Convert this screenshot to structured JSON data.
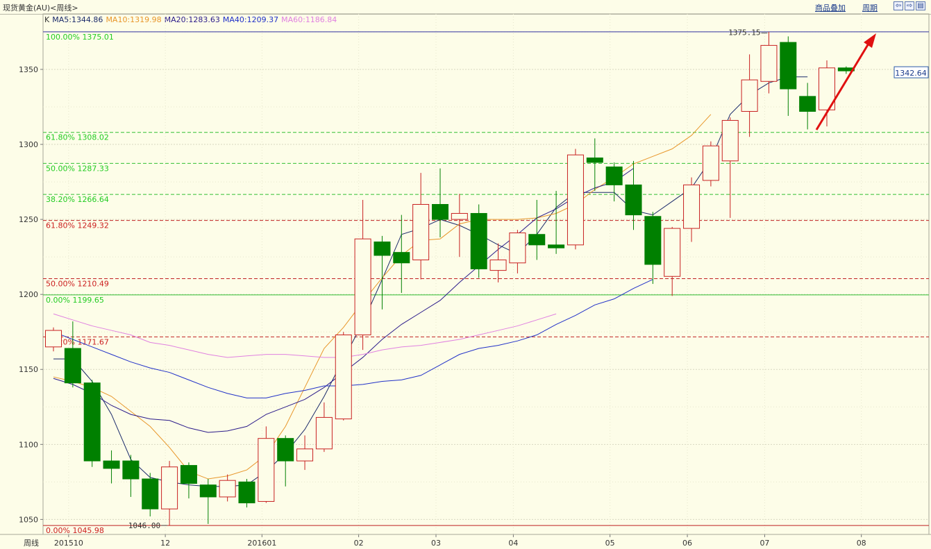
{
  "header": {
    "title": "现货黄金(AU)<周线>",
    "overlay_label": "商品叠加",
    "period_label": "周期"
  },
  "legend": {
    "prefix": "K",
    "items": [
      {
        "label": "MA5:1344.86",
        "color": "#1a2a6a"
      },
      {
        "label": "MA10:1319.98",
        "color": "#e8962a"
      },
      {
        "label": "MA20:1283.63",
        "color": "#2a1a8a"
      },
      {
        "label": "MA40:1209.37",
        "color": "#2030c8"
      },
      {
        "label": "MA60:1186.84",
        "color": "#e080e0"
      }
    ]
  },
  "chart_data": {
    "type": "candlestick",
    "ylim": [
      1040,
      1387
    ],
    "yticks": [
      1050,
      1100,
      1150,
      1200,
      1250,
      1300,
      1350
    ],
    "x_corner_label": "周线",
    "x_ticks": [
      {
        "label": "201510",
        "index": 1
      },
      {
        "label": "12",
        "index": 6
      },
      {
        "label": "201601",
        "index": 11
      },
      {
        "label": "02",
        "index": 16
      },
      {
        "label": "03",
        "index": 20
      },
      {
        "label": "04",
        "index": 24
      },
      {
        "label": "05",
        "index": 29
      },
      {
        "label": "06",
        "index": 33
      },
      {
        "label": "07",
        "index": 37
      },
      {
        "label": "08",
        "index": 42
      }
    ],
    "candles": [
      {
        "o": 1165,
        "h": 1178,
        "l": 1162,
        "c": 1176
      },
      {
        "o": 1164,
        "h": 1182,
        "l": 1138,
        "c": 1141
      },
      {
        "o": 1141,
        "h": 1143,
        "l": 1085,
        "c": 1089
      },
      {
        "o": 1089,
        "h": 1096,
        "l": 1074,
        "c": 1084
      },
      {
        "o": 1089,
        "h": 1093,
        "l": 1065,
        "c": 1077
      },
      {
        "o": 1077,
        "h": 1081,
        "l": 1052,
        "c": 1057
      },
      {
        "o": 1057,
        "h": 1089,
        "l": 1046,
        "c": 1085
      },
      {
        "o": 1086,
        "h": 1088,
        "l": 1064,
        "c": 1074
      },
      {
        "o": 1073,
        "h": 1077,
        "l": 1047,
        "c": 1065
      },
      {
        "o": 1065,
        "h": 1080,
        "l": 1062,
        "c": 1076
      },
      {
        "o": 1075,
        "h": 1077,
        "l": 1058,
        "c": 1061
      },
      {
        "o": 1062,
        "h": 1112,
        "l": 1061,
        "c": 1104
      },
      {
        "o": 1104,
        "h": 1106,
        "l": 1072,
        "c": 1089
      },
      {
        "o": 1089,
        "h": 1106,
        "l": 1083,
        "c": 1097
      },
      {
        "o": 1097,
        "h": 1128,
        "l": 1095,
        "c": 1118
      },
      {
        "o": 1117,
        "h": 1175,
        "l": 1116,
        "c": 1173
      },
      {
        "o": 1173,
        "h": 1263,
        "l": 1163,
        "c": 1237
      },
      {
        "o": 1235,
        "h": 1239,
        "l": 1190,
        "c": 1226
      },
      {
        "o": 1228,
        "h": 1253,
        "l": 1201,
        "c": 1221
      },
      {
        "o": 1223,
        "h": 1281,
        "l": 1210,
        "c": 1260
      },
      {
        "o": 1260,
        "h": 1284,
        "l": 1238,
        "c": 1250
      },
      {
        "o": 1250,
        "h": 1267,
        "l": 1225,
        "c": 1254
      },
      {
        "o": 1254,
        "h": 1260,
        "l": 1211,
        "c": 1217
      },
      {
        "o": 1216,
        "h": 1234,
        "l": 1208,
        "c": 1223
      },
      {
        "o": 1221,
        "h": 1243,
        "l": 1214,
        "c": 1241
      },
      {
        "o": 1240,
        "h": 1263,
        "l": 1223,
        "c": 1233
      },
      {
        "o": 1233,
        "h": 1269,
        "l": 1227,
        "c": 1231
      },
      {
        "o": 1233,
        "h": 1297,
        "l": 1230,
        "c": 1293
      },
      {
        "o": 1291,
        "h": 1304,
        "l": 1269,
        "c": 1288
      },
      {
        "o": 1285,
        "h": 1288,
        "l": 1262,
        "c": 1273
      },
      {
        "o": 1273,
        "h": 1289,
        "l": 1243,
        "c": 1253
      },
      {
        "o": 1252,
        "h": 1255,
        "l": 1207,
        "c": 1220
      },
      {
        "o": 1212,
        "h": 1245,
        "l": 1199,
        "c": 1244
      },
      {
        "o": 1244,
        "h": 1278,
        "l": 1235,
        "c": 1273
      },
      {
        "o": 1276,
        "h": 1302,
        "l": 1272,
        "c": 1299
      },
      {
        "o": 1289,
        "h": 1318,
        "l": 1251,
        "c": 1316
      },
      {
        "o": 1322,
        "h": 1360,
        "l": 1305,
        "c": 1343
      },
      {
        "o": 1342,
        "h": 1375,
        "l": 1334,
        "c": 1366
      },
      {
        "o": 1368,
        "h": 1372,
        "l": 1319,
        "c": 1337
      },
      {
        "o": 1332,
        "h": 1341,
        "l": 1310,
        "c": 1322
      },
      {
        "o": 1323,
        "h": 1356,
        "l": 1312,
        "c": 1351
      },
      {
        "o": 1351,
        "h": 1352,
        "l": 1347,
        "c": 1349
      }
    ],
    "ma_series": [
      {
        "name": "MA5",
        "color": "#1a2a6a",
        "start": 0,
        "values": [
          1157,
          1157,
          1142,
          1120,
          1090,
          1078,
          1075,
          1073,
          1072,
          1072,
          1073,
          1082,
          1094,
          1110,
          1132,
          1157,
          1181,
          1210,
          1240,
          1244,
          1250,
          1246,
          1240,
          1233,
          1227,
          1240,
          1258,
          1268,
          1268,
          1268,
          1256,
          1253,
          1262,
          1271,
          1290,
          1320,
          1333,
          1341,
          1345,
          1345
        ]
      },
      {
        "name": "MA10",
        "color": "#e8962a",
        "start": 0,
        "values": [
          1145,
          1142,
          1138,
          1132,
          1122,
          1112,
          1098,
          1082,
          1077,
          1079,
          1083,
          1093,
          1112,
          1138,
          1164,
          1178,
          1195,
          1211,
          1226,
          1236,
          1237,
          1247,
          1250,
          1250,
          1250,
          1251,
          1254,
          1260,
          1270,
          1278,
          1287,
          1292,
          1297,
          1306,
          1320
        ]
      },
      {
        "name": "MA20",
        "color": "#2a1a8a",
        "start": 0,
        "values": [
          1144,
          1140,
          1134,
          1126,
          1120,
          1117,
          1116,
          1111,
          1108,
          1109,
          1112,
          1120,
          1125,
          1130,
          1138,
          1148,
          1158,
          1170,
          1180,
          1188,
          1196,
          1208,
          1219,
          1230,
          1240,
          1251,
          1257,
          1265,
          1271,
          1275,
          1284
        ]
      },
      {
        "name": "MA40",
        "color": "#2030c8",
        "start": 0,
        "values": [
          1175,
          1170,
          1165,
          1160,
          1155,
          1151,
          1148,
          1143,
          1138,
          1134,
          1131,
          1131,
          1134,
          1136,
          1139,
          1139,
          1140,
          1142,
          1143,
          1146,
          1153,
          1160,
          1164,
          1166,
          1169,
          1173,
          1180,
          1186,
          1193,
          1197,
          1204,
          1210
        ]
      },
      {
        "name": "MA60",
        "color": "#e080e0",
        "start": 0,
        "values": [
          1187,
          1183,
          1179,
          1176,
          1173,
          1168,
          1166,
          1163,
          1160,
          1158,
          1159,
          1160,
          1160,
          1159,
          1158,
          1158,
          1160,
          1163,
          1165,
          1166,
          1168,
          1170,
          1173,
          1176,
          1179,
          1183,
          1187
        ]
      }
    ],
    "fib_green": [
      {
        "label": "100.00% 1375.01",
        "value": 1375.01
      },
      {
        "label": "61.80% 1308.02",
        "value": 1308.02
      },
      {
        "label": "50.00% 1287.33",
        "value": 1287.33
      },
      {
        "label": "38.20% 1266.64",
        "value": 1266.64
      },
      {
        "label": "0.00% 1199.65",
        "value": 1199.65
      }
    ],
    "fib_red": [
      {
        "label": "61.80% 1249.32",
        "value": 1249.32
      },
      {
        "label": "50.00% 1210.49",
        "value": 1210.49
      },
      {
        "label": "38.20% 1171.67",
        "value": 1171.67
      },
      {
        "label": "0.00% 1045.98",
        "value": 1045.98
      }
    ],
    "annotations": {
      "high_label": "1375.15",
      "high_value": 1375.15,
      "low_label": "1046.00",
      "low_value": 1046.0,
      "current_price": "1342.64"
    }
  }
}
